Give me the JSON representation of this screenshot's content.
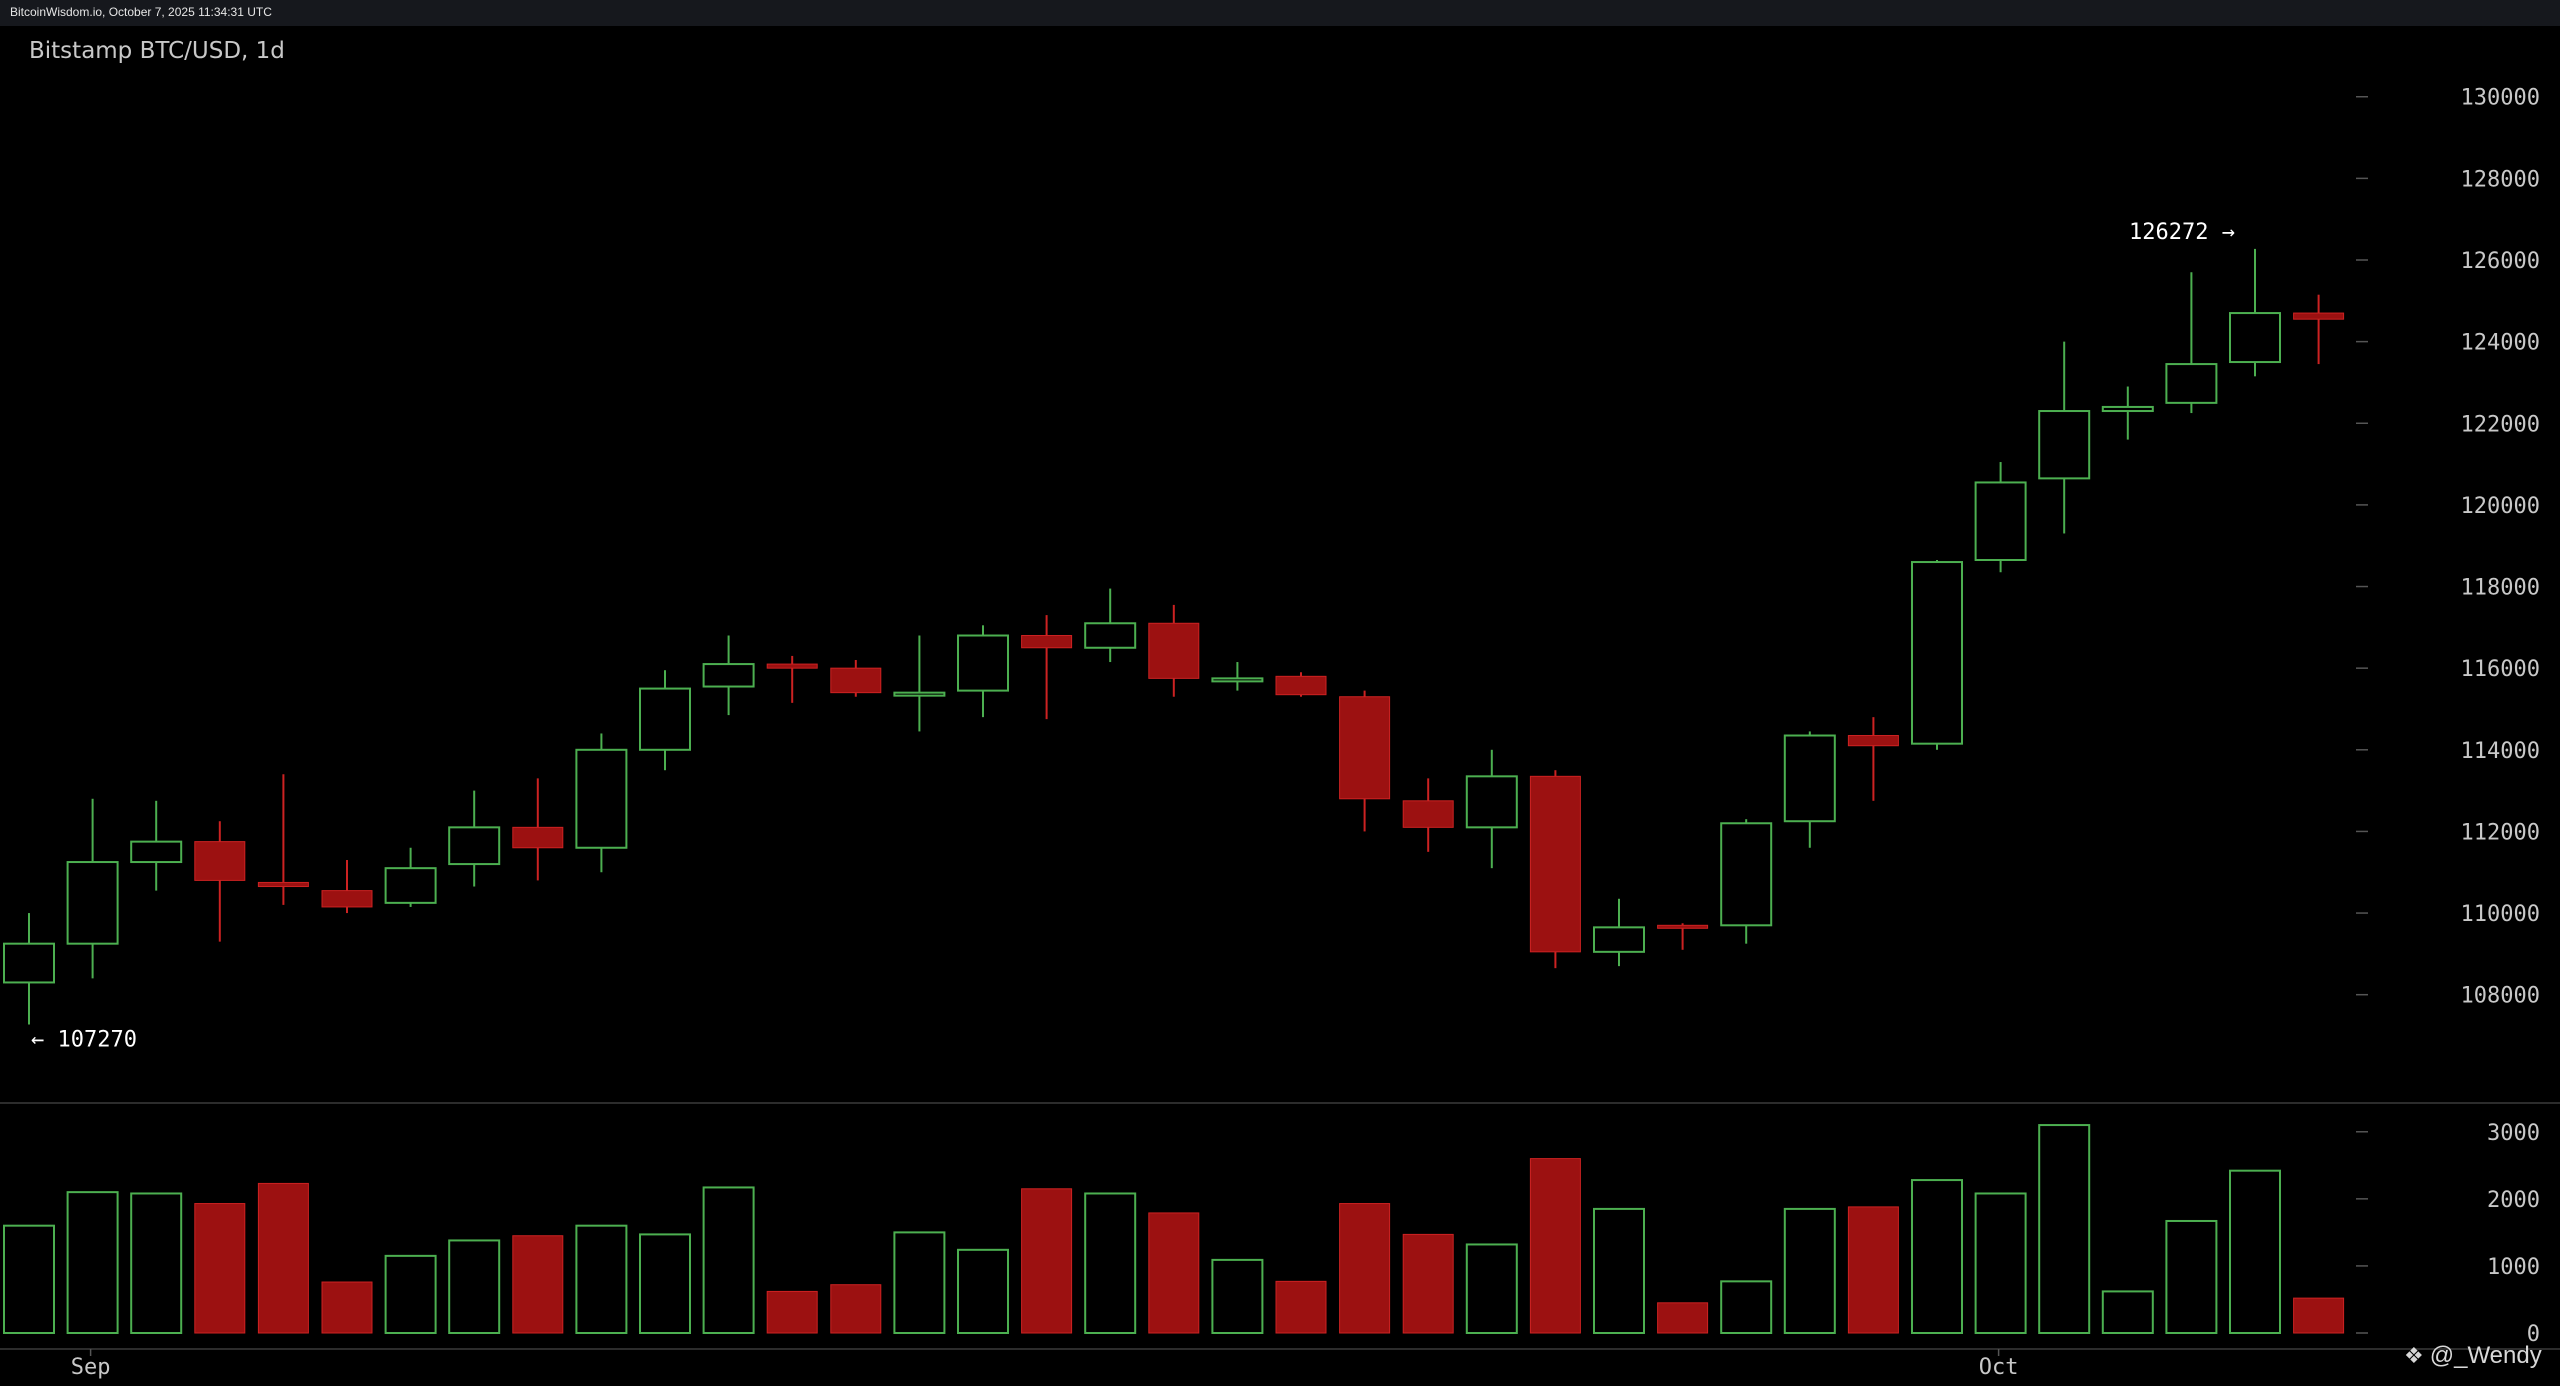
{
  "header": {
    "source_text": "BitcoinWisdom.io, October 7, 2025 11:34:31 UTC"
  },
  "watermark": {
    "icon": "binance-diamond-icon",
    "text": "@_Wendy"
  },
  "colors": {
    "up": "#4caf50",
    "down": "#9c1111",
    "down_stroke": "#cc2222",
    "axis_text": "#c8c8c8",
    "separator": "#3a3a3a"
  },
  "chart_data": {
    "type": "candlestick",
    "title": "Bitstamp BTC/USD, 1d",
    "price_axis": {
      "ylim": [
        106400,
        130900
      ],
      "ticks": [
        108000,
        110000,
        112000,
        114000,
        116000,
        118000,
        120000,
        122000,
        124000,
        126000,
        128000,
        130000
      ]
    },
    "volume_axis": {
      "ylim": [
        0,
        3250
      ],
      "ticks": [
        0,
        1000,
        2000,
        3000
      ]
    },
    "x_labels": [
      {
        "label": "Sep",
        "index": 1
      },
      {
        "label": "Oct",
        "index": 31
      }
    ],
    "annotations": [
      {
        "text": "← 107270",
        "value": 107270,
        "index": 0,
        "side": "right"
      },
      {
        "text": "126272 →",
        "value": 126272,
        "index": 35,
        "side": "left"
      }
    ],
    "candles": [
      {
        "o": 108300,
        "h": 110000,
        "l": 107270,
        "c": 109250,
        "v": 1600
      },
      {
        "o": 109250,
        "h": 112800,
        "l": 108400,
        "c": 111250,
        "v": 2100
      },
      {
        "o": 111250,
        "h": 112750,
        "l": 110550,
        "c": 111750,
        "v": 2080
      },
      {
        "o": 111750,
        "h": 112250,
        "l": 109300,
        "c": 110800,
        "v": 1930
      },
      {
        "o": 110750,
        "h": 113400,
        "l": 110200,
        "c": 110650,
        "v": 2230
      },
      {
        "o": 110550,
        "h": 111300,
        "l": 110000,
        "c": 110150,
        "v": 760
      },
      {
        "o": 110250,
        "h": 111600,
        "l": 110150,
        "c": 111100,
        "v": 1150
      },
      {
        "o": 111200,
        "h": 113000,
        "l": 110650,
        "c": 112100,
        "v": 1380
      },
      {
        "o": 112100,
        "h": 113300,
        "l": 110800,
        "c": 111600,
        "v": 1450
      },
      {
        "o": 111600,
        "h": 114400,
        "l": 111000,
        "c": 114000,
        "v": 1600
      },
      {
        "o": 114000,
        "h": 115950,
        "l": 113500,
        "c": 115500,
        "v": 1470
      },
      {
        "o": 115550,
        "h": 116800,
        "l": 114850,
        "c": 116100,
        "v": 2170
      },
      {
        "o": 116100,
        "h": 116300,
        "l": 115150,
        "c": 116000,
        "v": 620
      },
      {
        "o": 116000,
        "h": 116200,
        "l": 115300,
        "c": 115400,
        "v": 720
      },
      {
        "o": 115400,
        "h": 116800,
        "l": 114450,
        "c": 115400,
        "v": 1500
      },
      {
        "o": 115450,
        "h": 117050,
        "l": 114800,
        "c": 116800,
        "v": 1240
      },
      {
        "o": 116800,
        "h": 117300,
        "l": 114750,
        "c": 116500,
        "v": 2150
      },
      {
        "o": 116500,
        "h": 117950,
        "l": 116150,
        "c": 117100,
        "v": 2080
      },
      {
        "o": 117100,
        "h": 117550,
        "l": 115300,
        "c": 115750,
        "v": 1790
      },
      {
        "o": 115750,
        "h": 116150,
        "l": 115450,
        "c": 115750,
        "v": 1090
      },
      {
        "o": 115800,
        "h": 115900,
        "l": 115300,
        "c": 115350,
        "v": 770
      },
      {
        "o": 115300,
        "h": 115450,
        "l": 112000,
        "c": 112800,
        "v": 1930
      },
      {
        "o": 112750,
        "h": 113300,
        "l": 111500,
        "c": 112100,
        "v": 1470
      },
      {
        "o": 112100,
        "h": 114000,
        "l": 111100,
        "c": 113350,
        "v": 1320
      },
      {
        "o": 113350,
        "h": 113500,
        "l": 108650,
        "c": 109050,
        "v": 2600
      },
      {
        "o": 109050,
        "h": 110350,
        "l": 108700,
        "c": 109650,
        "v": 1850
      },
      {
        "o": 109700,
        "h": 109750,
        "l": 109100,
        "c": 109650,
        "v": 450
      },
      {
        "o": 109700,
        "h": 112300,
        "l": 109250,
        "c": 112200,
        "v": 770
      },
      {
        "o": 112250,
        "h": 114450,
        "l": 111600,
        "c": 114350,
        "v": 1850
      },
      {
        "o": 114350,
        "h": 114800,
        "l": 112750,
        "c": 114100,
        "v": 1880
      },
      {
        "o": 114150,
        "h": 118650,
        "l": 114000,
        "c": 118600,
        "v": 2280
      },
      {
        "o": 118650,
        "h": 121050,
        "l": 118350,
        "c": 120550,
        "v": 2080
      },
      {
        "o": 120650,
        "h": 124000,
        "l": 119300,
        "c": 122300,
        "v": 3100
      },
      {
        "o": 122300,
        "h": 122900,
        "l": 121600,
        "c": 122400,
        "v": 620
      },
      {
        "o": 122500,
        "h": 125700,
        "l": 122250,
        "c": 123450,
        "v": 1670
      },
      {
        "o": 123500,
        "h": 126272,
        "l": 123150,
        "c": 124700,
        "v": 2420
      },
      {
        "o": 124700,
        "h": 125150,
        "l": 123450,
        "c": 124550,
        "v": 520
      }
    ]
  }
}
